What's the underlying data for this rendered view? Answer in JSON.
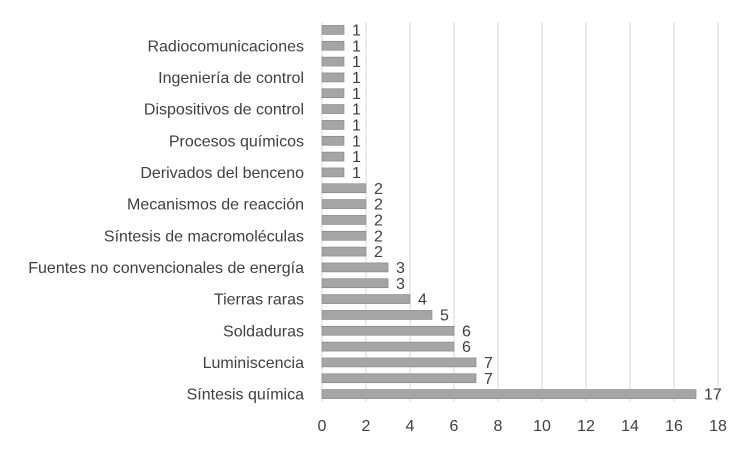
{
  "chart_data": {
    "type": "bar",
    "orientation": "horizontal",
    "categories": [
      "Síntesis química",
      "",
      "Luminiscencia",
      "",
      "Soldaduras",
      "",
      "Tierras raras",
      "",
      "Fuentes no convencionales de energía",
      "",
      "Síntesis de macromoléculas",
      "",
      "Mecanismos de reacción",
      "",
      "Derivados del benceno",
      "",
      "Procesos químicos",
      "",
      "Dispositivos de control",
      "",
      "Ingeniería de control",
      "",
      "Radiocomunicaciones",
      ""
    ],
    "values": [
      17,
      7,
      7,
      6,
      6,
      5,
      4,
      3,
      3,
      2,
      2,
      2,
      2,
      2,
      1,
      1,
      1,
      1,
      1,
      1,
      1,
      1,
      1,
      1
    ],
    "x_ticks": [
      "0",
      "2",
      "4",
      "6",
      "8",
      "10",
      "12",
      "14",
      "16",
      "18"
    ],
    "xlim": [
      0,
      18
    ],
    "grid": "vertical",
    "bar_color": "#a5a5a5",
    "bar_edge_color": "#7f7f7f",
    "grid_color": "#d9d9d9",
    "text_color": "#404040"
  }
}
